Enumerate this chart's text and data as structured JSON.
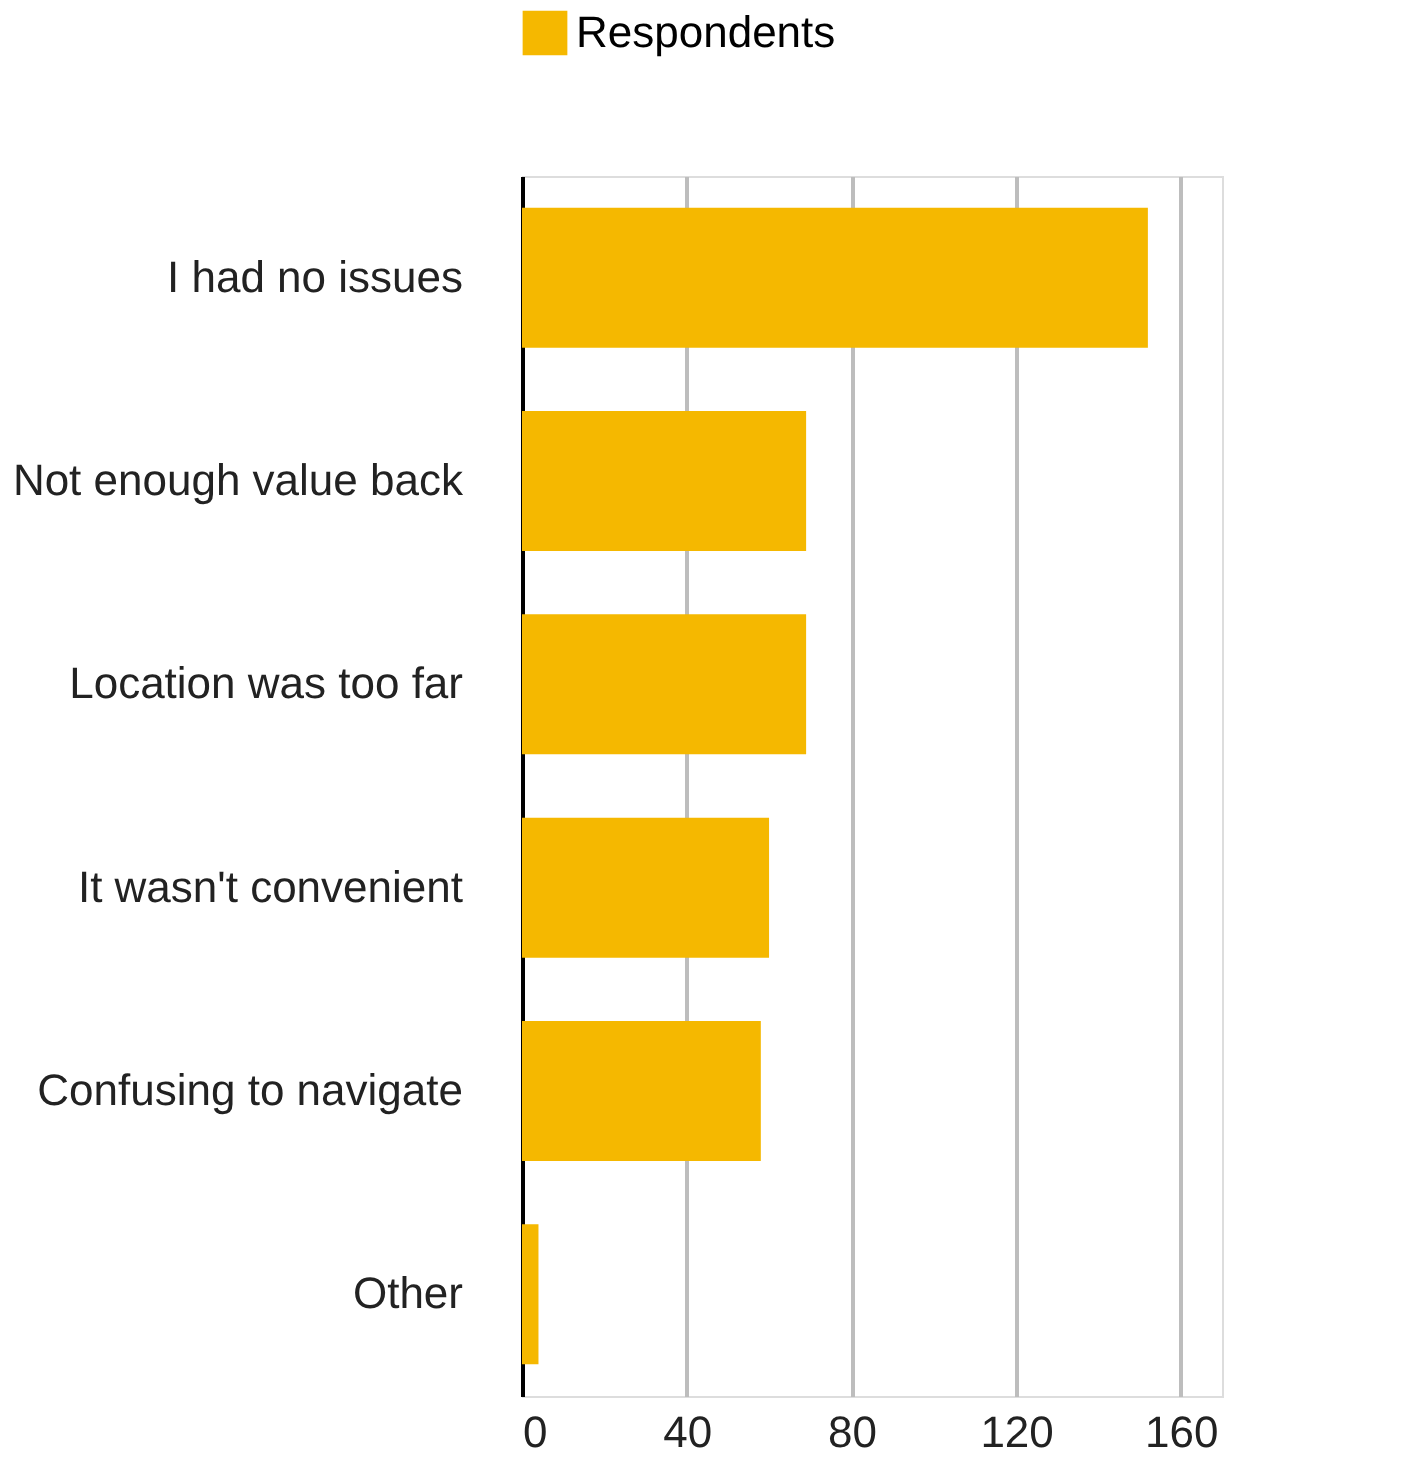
{
  "chart_data": {
    "type": "bar",
    "orientation": "horizontal",
    "categories": [
      "I had no issues",
      "Not enough value back",
      "Location was too far",
      "It wasn't convenient",
      "Confusing to navigate",
      "Other"
    ],
    "series": [
      {
        "name": "Respondents",
        "color": "#f5b800",
        "values": [
          152,
          69,
          69,
          60,
          58,
          4
        ]
      }
    ],
    "xlim": [
      0,
      170
    ],
    "xticks": [
      0,
      40,
      80,
      120,
      160
    ],
    "grid": "x",
    "legend": "top"
  }
}
